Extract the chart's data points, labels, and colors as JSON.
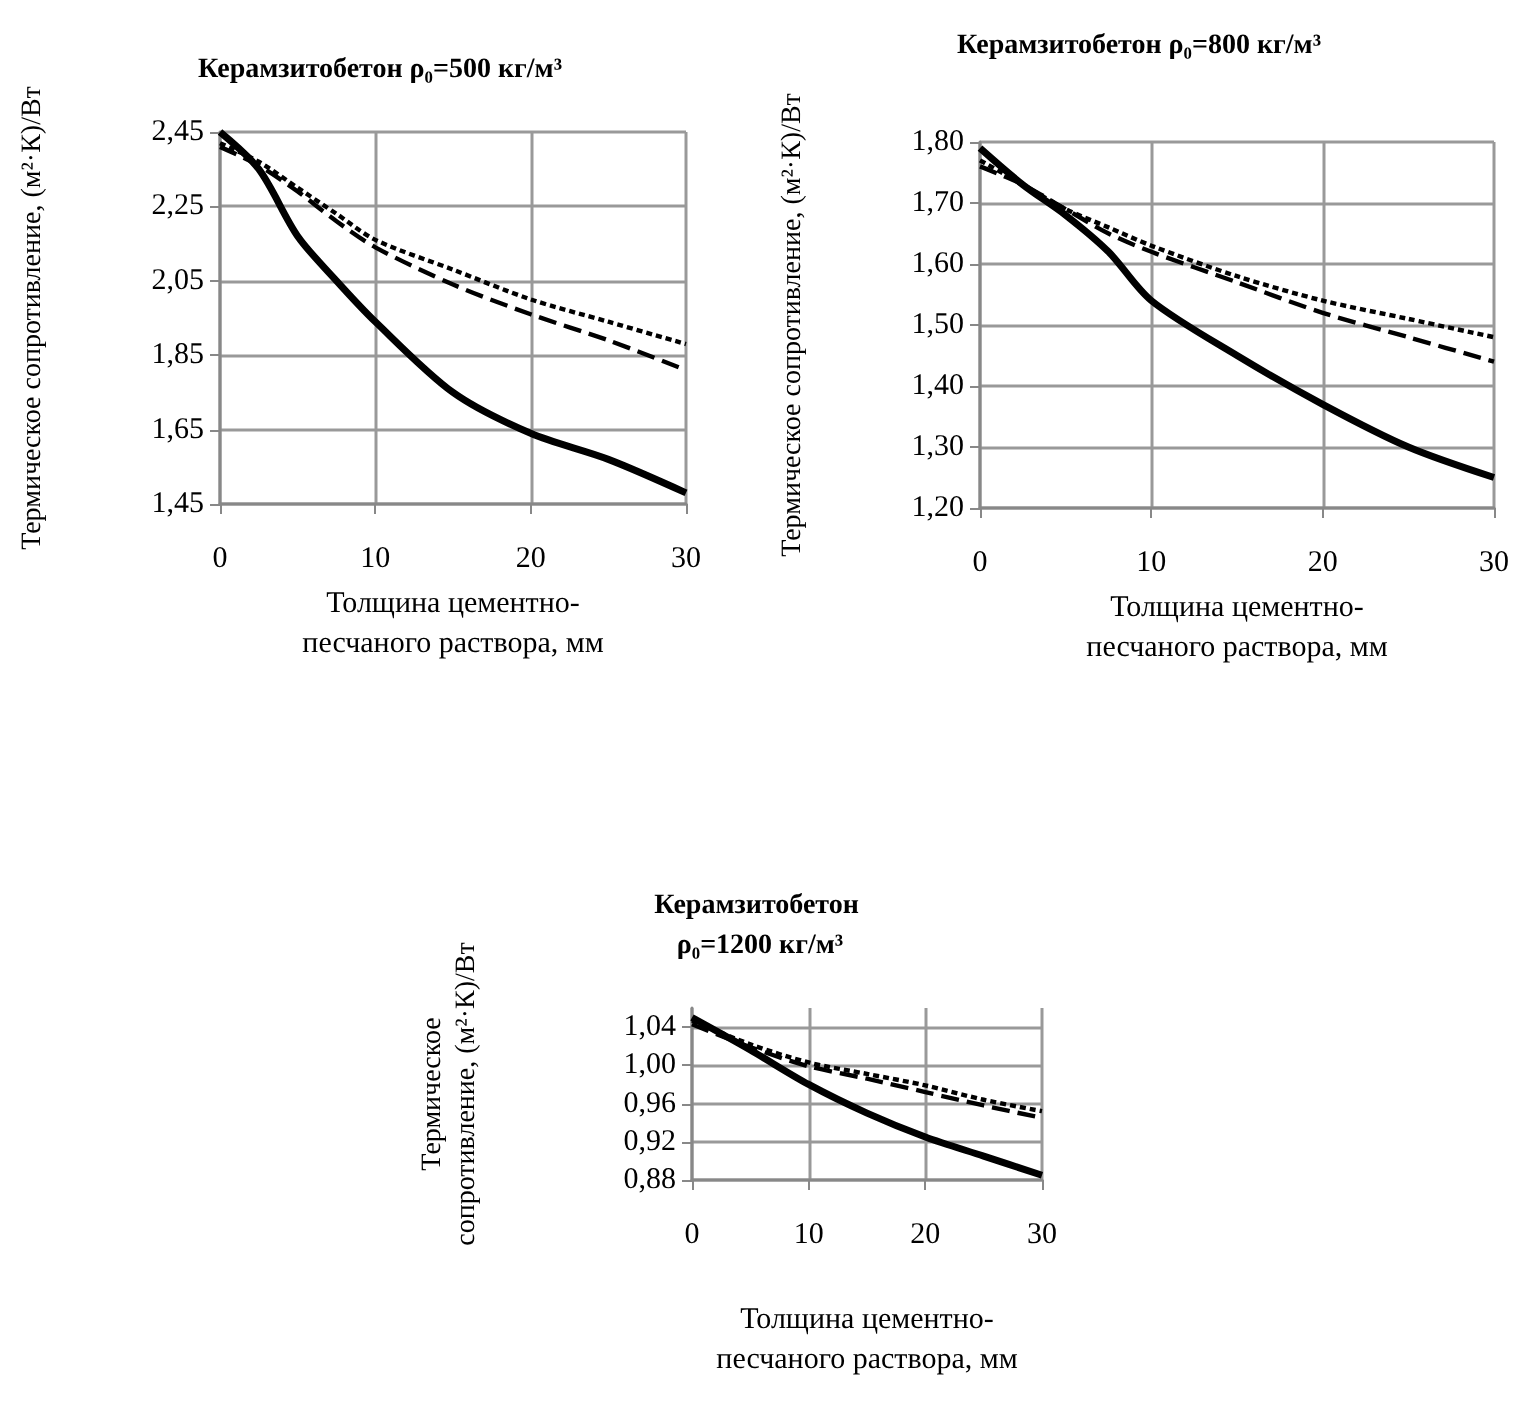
{
  "chart_data": [
    {
      "type": "line",
      "title": "Керамзитобетон ρ₀=500 кг/м³",
      "xlabel": "Толщина цементно-песчаного раствора, мм",
      "ylabel": "Термическое сопротивление, (м²·К)/Вт",
      "x": [
        0,
        2.5,
        5,
        7.5,
        10,
        15,
        20,
        25,
        30
      ],
      "series": [
        {
          "color": "#000000",
          "line_style": "solid",
          "values": [
            2.45,
            2.35,
            2.17,
            2.05,
            1.94,
            1.75,
            1.64,
            1.57,
            1.48
          ]
        },
        {
          "color": "#000000",
          "line_style": "dashed",
          "values": [
            2.41,
            2.36,
            2.29,
            2.21,
            2.14,
            2.04,
            1.96,
            1.89,
            1.81
          ]
        },
        {
          "color": "#000000",
          "line_style": "dotted",
          "values": [
            2.42,
            2.37,
            2.3,
            2.23,
            2.16,
            2.08,
            2.0,
            1.94,
            1.88
          ]
        }
      ],
      "xlim": [
        0,
        30
      ],
      "xticks": [
        0,
        10,
        20,
        30
      ],
      "ylim": [
        1.45,
        2.45
      ],
      "yticks": [
        {
          "value": 1.45,
          "label": "1,45"
        },
        {
          "value": 1.65,
          "label": "1,65"
        },
        {
          "value": 1.85,
          "label": "1,85"
        },
        {
          "value": 2.05,
          "label": "2,05"
        },
        {
          "value": 2.25,
          "label": "2,25"
        },
        {
          "value": 2.45,
          "label": "2,45"
        }
      ],
      "grid": true,
      "marker": "none"
    },
    {
      "type": "line",
      "title": "Керамзитобетон ρ₀=800 кг/м³",
      "xlabel": "Толщина цементно-песчаного раствора, мм",
      "ylabel": "Термическое сопротивление, (м²·К)/Вт",
      "x": [
        0,
        2.5,
        5,
        7.5,
        10,
        15,
        20,
        25,
        30
      ],
      "series": [
        {
          "color": "#000000",
          "line_style": "solid",
          "values": [
            1.79,
            1.73,
            1.68,
            1.62,
            1.54,
            1.45,
            1.37,
            1.3,
            1.25
          ]
        },
        {
          "color": "#000000",
          "line_style": "dashed",
          "values": [
            1.76,
            1.73,
            1.69,
            1.65,
            1.62,
            1.57,
            1.52,
            1.48,
            1.44
          ]
        },
        {
          "color": "#000000",
          "line_style": "dotted",
          "values": [
            1.77,
            1.73,
            1.69,
            1.66,
            1.63,
            1.58,
            1.54,
            1.51,
            1.48
          ]
        }
      ],
      "xlim": [
        0,
        30
      ],
      "xticks": [
        0,
        10,
        20,
        30
      ],
      "ylim": [
        1.2,
        1.8
      ],
      "yticks": [
        {
          "value": 1.2,
          "label": "1,20"
        },
        {
          "value": 1.3,
          "label": "1,30"
        },
        {
          "value": 1.4,
          "label": "1,40"
        },
        {
          "value": 1.5,
          "label": "1,50"
        },
        {
          "value": 1.6,
          "label": "1,60"
        },
        {
          "value": 1.7,
          "label": "1,70"
        },
        {
          "value": 1.8,
          "label": "1,80"
        }
      ],
      "grid": true,
      "marker": "none"
    },
    {
      "type": "line",
      "title": "Керамзитобетон ρ₀=1200 кг/м³",
      "xlabel": "Толщина цементно-песчаного раствора, мм",
      "ylabel": "Термическое сопротивление, (м²·К)/Вт",
      "x": [
        0,
        5,
        10,
        15,
        20,
        25,
        30
      ],
      "series": [
        {
          "color": "#000000",
          "line_style": "solid",
          "values": [
            1.05,
            1.016,
            0.98,
            0.95,
            0.925,
            0.905,
            0.885
          ]
        },
        {
          "color": "#000000",
          "line_style": "dashed",
          "values": [
            1.043,
            1.019,
            0.999,
            0.986,
            0.972,
            0.958,
            0.945
          ]
        },
        {
          "color": "#000000",
          "line_style": "dotted",
          "values": [
            1.047,
            1.022,
            1.003,
            0.991,
            0.979,
            0.964,
            0.952
          ]
        }
      ],
      "xlim": [
        0,
        30
      ],
      "xticks": [
        0,
        10,
        20,
        30
      ],
      "ylim": [
        0.88,
        1.06
      ],
      "yticks": [
        {
          "value": 0.88,
          "label": "0,88"
        },
        {
          "value": 0.92,
          "label": "0,92"
        },
        {
          "value": 0.96,
          "label": "0,96"
        },
        {
          "value": 1.0,
          "label": "1,00"
        },
        {
          "value": 1.04,
          "label": "1,04"
        }
      ],
      "grid": true,
      "marker": "none"
    }
  ]
}
